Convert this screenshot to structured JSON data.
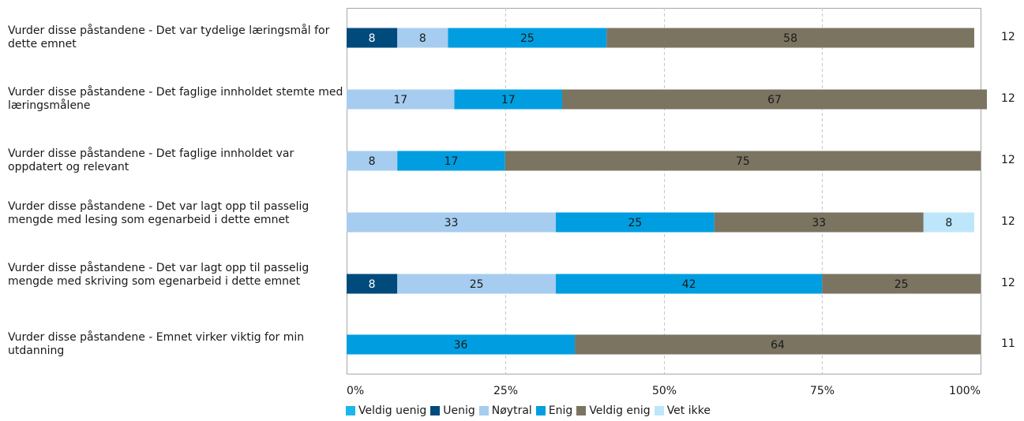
{
  "chart_data": {
    "type": "bar",
    "orientation": "horizontal",
    "stacked": true,
    "categories": [
      "Vurder disse påstandene  - Det var tydelige læringsmål for dette emnet",
      "Vurder disse påstandene  - Det faglige innholdet stemte med læringsmålene",
      "Vurder disse påstandene  - Det faglige innholdet var oppdatert og relevant",
      "Vurder disse påstandene  - Det var lagt opp til passelig mengde med lesing som egenarbeid i dette emnet",
      "Vurder disse påstandene  - Det var lagt opp til passelig mengde med skriving som egenarbeid i dette emnet",
      "Vurder disse påstandene  - Emnet virker viktig for min utdanning"
    ],
    "counts": [
      "12",
      "12",
      "12",
      "12",
      "12",
      "11"
    ],
    "series": [
      {
        "name": "Veldig uenig",
        "color": "#1ab7ea",
        "values": [
          0,
          0,
          0,
          0,
          0,
          0
        ]
      },
      {
        "name": "Uenig",
        "color": "#004b7c",
        "values": [
          8,
          0,
          0,
          0,
          8,
          0
        ]
      },
      {
        "name": "Nøytral",
        "color": "#a6cdef",
        "values": [
          8,
          17,
          8,
          33,
          25,
          0
        ]
      },
      {
        "name": "Enig",
        "color": "#009ee0",
        "values": [
          25,
          17,
          17,
          25,
          42,
          36
        ]
      },
      {
        "name": "Veldig enig",
        "color": "#7a7461",
        "values": [
          58,
          67,
          75,
          33,
          25,
          64
        ]
      },
      {
        "name": "Vet ikke",
        "color": "#bde6fa",
        "values": [
          0,
          0,
          0,
          8,
          0,
          0
        ]
      }
    ],
    "xlim": [
      0,
      100
    ],
    "xticks": [
      "0%",
      "25%",
      "50%",
      "75%",
      "100%"
    ],
    "grid": true,
    "legend_position": "bottom"
  }
}
